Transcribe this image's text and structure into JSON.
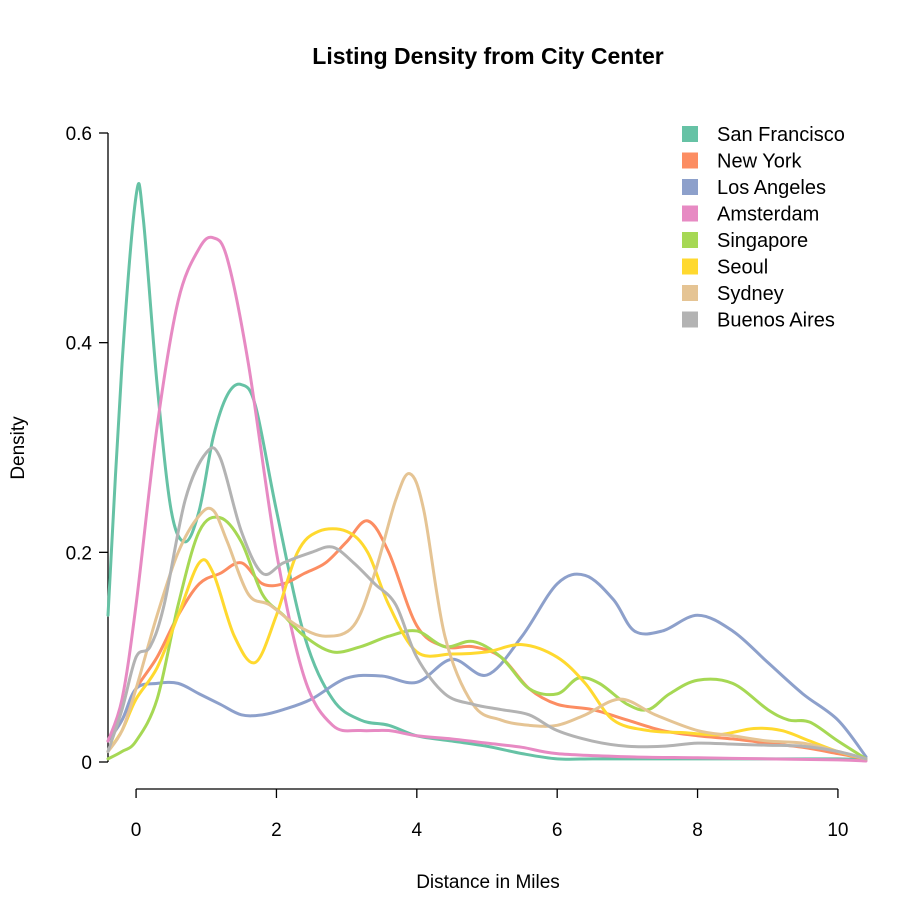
{
  "chart_data": {
    "type": "line",
    "title": "Listing Density from City Center",
    "xlabel": "Distance in Miles",
    "ylabel": "Density",
    "xlim": [
      -0.4,
      10.4
    ],
    "ylim": [
      0,
      0.6
    ],
    "xticks": [
      0,
      2,
      4,
      6,
      8,
      10
    ],
    "yticks": [
      0,
      0.2,
      0.4,
      0.6
    ],
    "xtick_labels": [
      "0",
      "2",
      "4",
      "6",
      "8",
      "10"
    ],
    "ytick_labels": [
      "0",
      "0.2",
      "0.4",
      "0.6"
    ],
    "grid": false,
    "legend_position": "top-right",
    "series": [
      {
        "name": "San Francisco",
        "color": "#66C2A5",
        "x": [
          -0.4,
          -0.2,
          0,
          0.1,
          0.3,
          0.5,
          0.7,
          0.9,
          1.1,
          1.3,
          1.5,
          1.7,
          2.0,
          2.4,
          2.8,
          3.2,
          3.6,
          4.0,
          4.5,
          5.0,
          5.5,
          6.0,
          6.5,
          7.0,
          8.0,
          9.0,
          10.0,
          10.4
        ],
        "values": [
          0.14,
          0.38,
          0.54,
          0.52,
          0.36,
          0.24,
          0.21,
          0.24,
          0.31,
          0.35,
          0.36,
          0.34,
          0.24,
          0.12,
          0.06,
          0.04,
          0.035,
          0.025,
          0.02,
          0.015,
          0.008,
          0.003,
          0.003,
          0.003,
          0.003,
          0.003,
          0.003,
          0.002
        ]
      },
      {
        "name": "New York",
        "color": "#FC8D62",
        "x": [
          -0.4,
          -0.2,
          0,
          0.3,
          0.6,
          0.9,
          1.2,
          1.5,
          1.8,
          2.1,
          2.4,
          2.7,
          3.0,
          3.3,
          3.6,
          4.0,
          4.4,
          4.8,
          5.2,
          5.6,
          6.0,
          6.5,
          7.0,
          7.5,
          8.0,
          8.5,
          9.0,
          9.5,
          10.0,
          10.4
        ],
        "values": [
          0.02,
          0.04,
          0.07,
          0.1,
          0.14,
          0.17,
          0.18,
          0.19,
          0.17,
          0.17,
          0.18,
          0.19,
          0.21,
          0.23,
          0.2,
          0.13,
          0.11,
          0.11,
          0.1,
          0.07,
          0.055,
          0.05,
          0.04,
          0.03,
          0.025,
          0.022,
          0.018,
          0.014,
          0.008,
          0.003
        ]
      },
      {
        "name": "Los Angeles",
        "color": "#8DA0CB",
        "x": [
          -0.4,
          -0.2,
          0,
          0.3,
          0.6,
          0.9,
          1.2,
          1.5,
          1.8,
          2.1,
          2.5,
          3.0,
          3.5,
          4.0,
          4.5,
          5.0,
          5.5,
          6.0,
          6.4,
          6.8,
          7.1,
          7.5,
          8.0,
          8.5,
          9.0,
          9.5,
          10.0,
          10.4
        ],
        "values": [
          0.02,
          0.04,
          0.07,
          0.075,
          0.075,
          0.065,
          0.055,
          0.045,
          0.045,
          0.05,
          0.06,
          0.08,
          0.082,
          0.076,
          0.098,
          0.083,
          0.12,
          0.17,
          0.178,
          0.155,
          0.125,
          0.125,
          0.14,
          0.125,
          0.095,
          0.065,
          0.04,
          0.005
        ]
      },
      {
        "name": "Amsterdam",
        "color": "#E78AC3",
        "x": [
          -0.4,
          -0.2,
          0,
          0.3,
          0.6,
          0.9,
          1.1,
          1.3,
          1.6,
          2.0,
          2.4,
          2.8,
          3.2,
          3.6,
          4.0,
          4.5,
          5.0,
          5.5,
          6.0,
          7.0,
          8.0,
          9.0,
          10.0,
          10.4
        ],
        "values": [
          0.02,
          0.06,
          0.15,
          0.32,
          0.44,
          0.49,
          0.5,
          0.48,
          0.38,
          0.2,
          0.08,
          0.035,
          0.03,
          0.03,
          0.025,
          0.022,
          0.018,
          0.014,
          0.008,
          0.005,
          0.004,
          0.003,
          0.002,
          0.001
        ]
      },
      {
        "name": "Singapore",
        "color": "#A6D854",
        "x": [
          -0.4,
          -0.2,
          0,
          0.3,
          0.6,
          0.9,
          1.2,
          1.5,
          1.8,
          2.1,
          2.4,
          2.8,
          3.2,
          3.6,
          4.0,
          4.4,
          4.8,
          5.2,
          5.6,
          6.0,
          6.3,
          6.6,
          7.0,
          7.3,
          7.6,
          8.0,
          8.5,
          9.0,
          9.3,
          9.6,
          10.0,
          10.4
        ],
        "values": [
          0.003,
          0.01,
          0.02,
          0.06,
          0.15,
          0.22,
          0.233,
          0.21,
          0.16,
          0.14,
          0.12,
          0.105,
          0.11,
          0.12,
          0.125,
          0.11,
          0.115,
          0.1,
          0.07,
          0.065,
          0.08,
          0.075,
          0.055,
          0.05,
          0.065,
          0.078,
          0.075,
          0.05,
          0.04,
          0.038,
          0.02,
          0.003
        ]
      },
      {
        "name": "Seoul",
        "color": "#FFD92F",
        "x": [
          -0.4,
          -0.2,
          0,
          0.3,
          0.6,
          0.9,
          1.1,
          1.4,
          1.7,
          2.0,
          2.3,
          2.6,
          3.0,
          3.3,
          3.6,
          4.0,
          4.5,
          5.0,
          5.5,
          6.0,
          6.4,
          6.8,
          7.3,
          7.8,
          8.3,
          8.8,
          9.2,
          9.6,
          10.0,
          10.4
        ],
        "values": [
          0.01,
          0.03,
          0.06,
          0.09,
          0.14,
          0.19,
          0.18,
          0.12,
          0.095,
          0.14,
          0.2,
          0.22,
          0.22,
          0.2,
          0.15,
          0.105,
          0.103,
          0.105,
          0.112,
          0.1,
          0.075,
          0.04,
          0.03,
          0.028,
          0.026,
          0.032,
          0.03,
          0.02,
          0.01,
          0.003
        ]
      },
      {
        "name": "Sydney",
        "color": "#E5C494",
        "x": [
          -0.4,
          -0.2,
          0,
          0.3,
          0.6,
          0.9,
          1.1,
          1.3,
          1.6,
          1.9,
          2.3,
          2.7,
          3.1,
          3.4,
          3.7,
          3.9,
          4.1,
          4.4,
          4.8,
          5.2,
          5.6,
          6.0,
          6.4,
          6.9,
          7.4,
          8.0,
          8.5,
          9.0,
          9.5,
          10.0,
          10.4
        ],
        "values": [
          0.01,
          0.03,
          0.07,
          0.14,
          0.2,
          0.235,
          0.24,
          0.21,
          0.16,
          0.15,
          0.13,
          0.12,
          0.13,
          0.18,
          0.25,
          0.275,
          0.24,
          0.12,
          0.055,
          0.04,
          0.035,
          0.035,
          0.045,
          0.06,
          0.045,
          0.03,
          0.025,
          0.02,
          0.018,
          0.01,
          0.003
        ]
      },
      {
        "name": "Buenos Aires",
        "color": "#B3B3B3",
        "x": [
          -0.4,
          -0.2,
          0,
          0.2,
          0.4,
          0.7,
          1.0,
          1.2,
          1.5,
          1.8,
          2.1,
          2.5,
          2.8,
          3.1,
          3.4,
          3.7,
          4.0,
          4.4,
          4.8,
          5.2,
          5.6,
          6.0,
          6.5,
          7.0,
          7.5,
          8.0,
          8.5,
          9.0,
          9.5,
          10.0,
          10.4
        ],
        "values": [
          0.01,
          0.05,
          0.1,
          0.11,
          0.15,
          0.25,
          0.295,
          0.29,
          0.22,
          0.18,
          0.19,
          0.2,
          0.205,
          0.19,
          0.17,
          0.15,
          0.1,
          0.065,
          0.055,
          0.05,
          0.045,
          0.03,
          0.02,
          0.015,
          0.015,
          0.018,
          0.017,
          0.016,
          0.015,
          0.01,
          0.003
        ]
      }
    ]
  }
}
